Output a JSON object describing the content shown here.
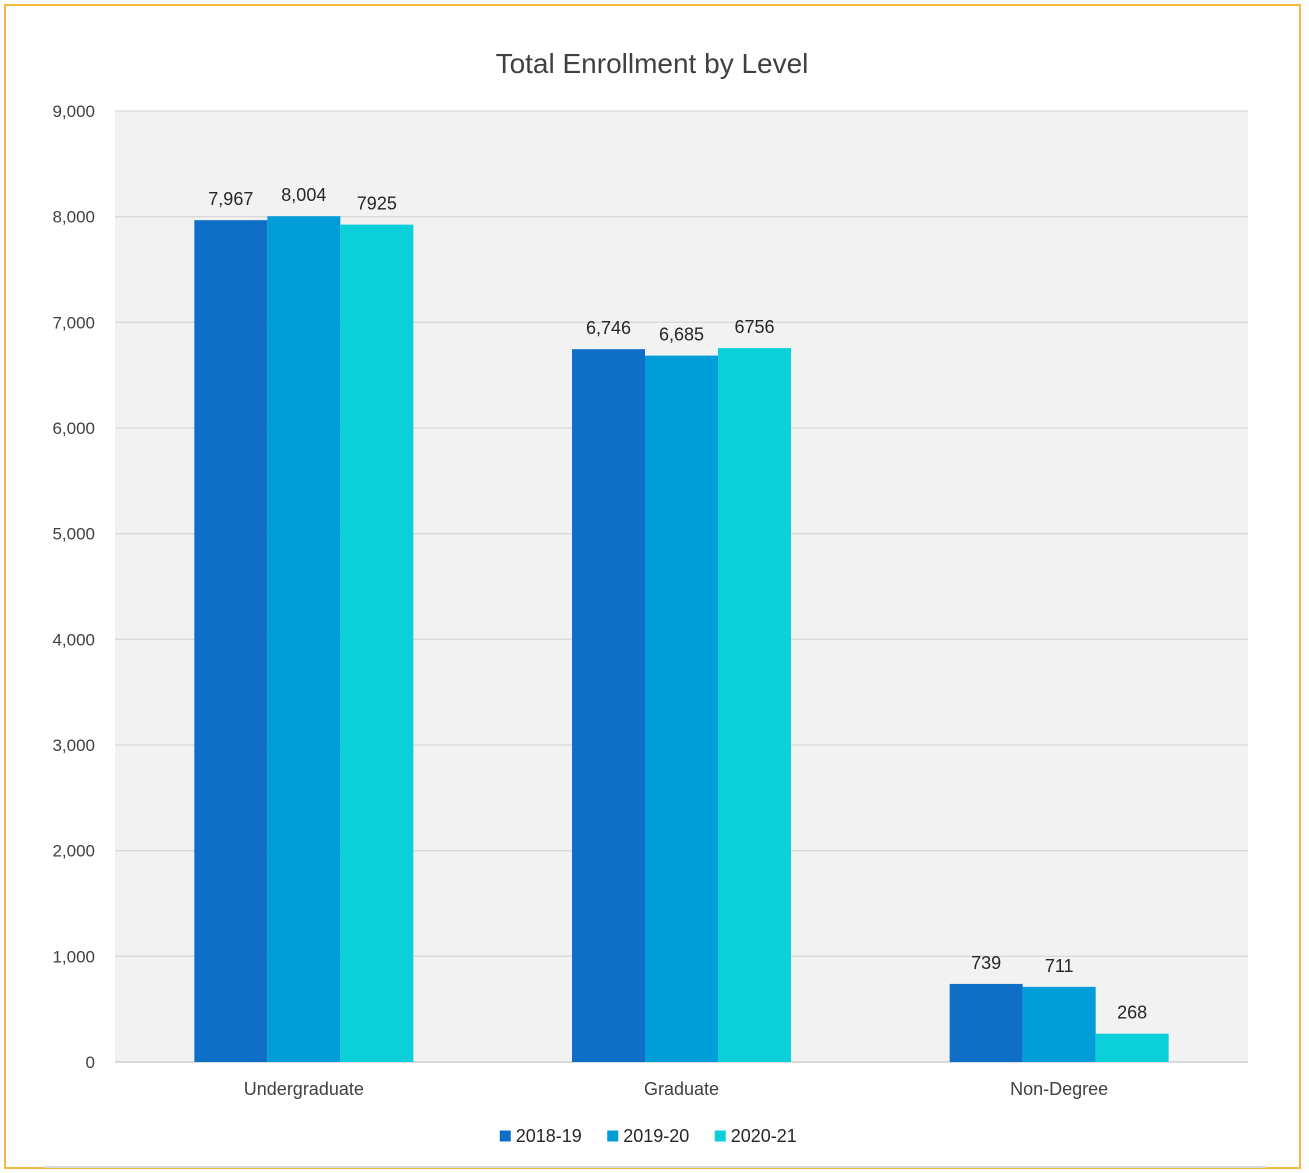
{
  "chart_data": {
    "type": "bar",
    "title": "Total Enrollment by Level",
    "xlabel": "",
    "ylabel": "",
    "categories": [
      "Undergraduate",
      "Graduate",
      "Non-Degree"
    ],
    "series": [
      {
        "name": "2018-19",
        "values": [
          7967,
          6746,
          739
        ],
        "labels": [
          "7,967",
          "6,746",
          "739"
        ],
        "color": "#0F6FC6"
      },
      {
        "name": "2019-20",
        "values": [
          8004,
          6685,
          711
        ],
        "labels": [
          "8,004",
          "6,685",
          "711"
        ],
        "color": "#009DD9"
      },
      {
        "name": "2020-21",
        "values": [
          7925,
          6756,
          268
        ],
        "labels": [
          "7925",
          "6756",
          "268"
        ],
        "color": "#0BD0D9"
      }
    ],
    "ylim": [
      0,
      9000
    ],
    "y_ticks": [
      0,
      1000,
      2000,
      3000,
      4000,
      5000,
      6000,
      7000,
      8000,
      9000
    ],
    "y_tick_labels": [
      "0",
      "1,000",
      "2,000",
      "3,000",
      "4,000",
      "5,000",
      "6,000",
      "7,000",
      "8,000",
      "9,000"
    ],
    "grid": true,
    "legend_position": "bottom",
    "plot_background": "#F2F2F2",
    "gridline_color": "#D9D9D9",
    "frame_color": "#F4B93E"
  }
}
